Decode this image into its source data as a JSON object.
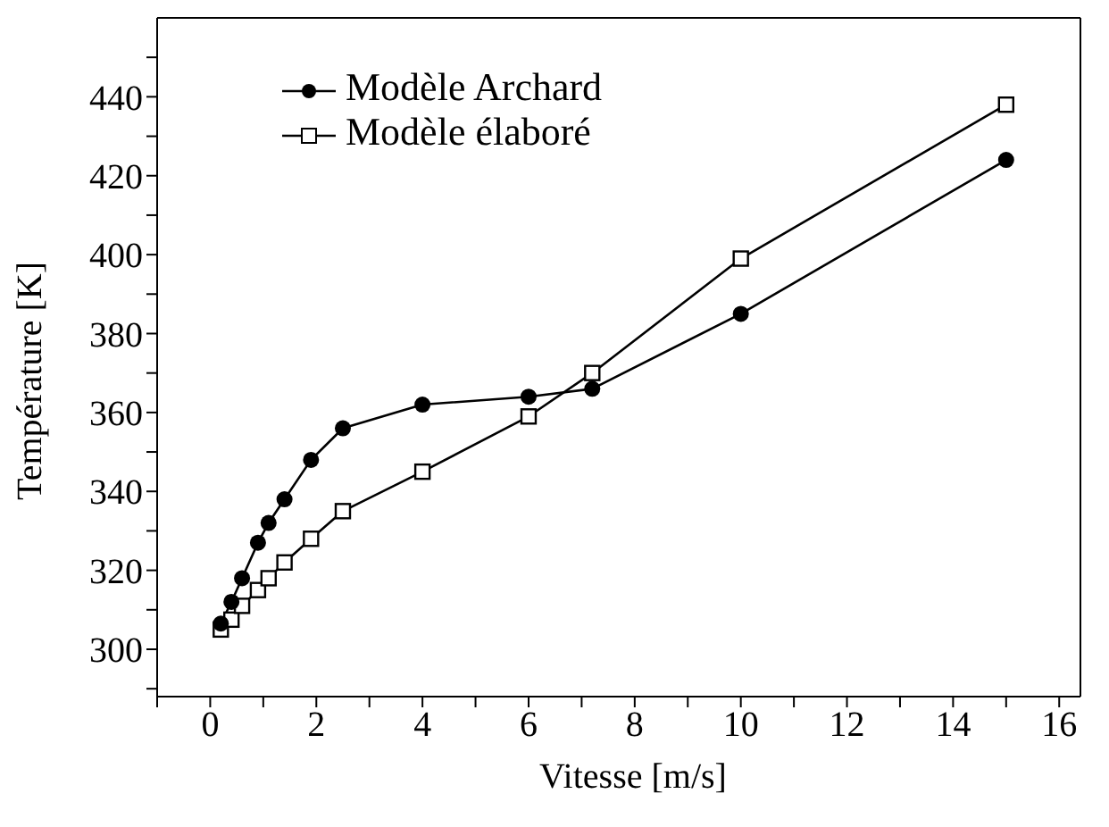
{
  "chart_data": {
    "type": "line",
    "xlabel": "Vitesse [m/s]",
    "ylabel": "Température [K]",
    "xlim": [
      -1,
      16.4
    ],
    "ylim": [
      288,
      460
    ],
    "xticks": [
      {
        "value": -1,
        "label": null
      },
      0,
      {
        "value": 1,
        "label": null
      },
      2,
      {
        "value": 3,
        "label": null
      },
      4,
      {
        "value": 5,
        "label": null
      },
      6,
      {
        "value": 7,
        "label": null
      },
      8,
      {
        "value": 9,
        "label": null
      },
      10,
      {
        "value": 11,
        "label": null
      },
      12,
      {
        "value": 13,
        "label": null
      },
      14,
      {
        "value": 15,
        "label": null
      },
      16
    ],
    "yticks": [
      {
        "value": 290,
        "label": null
      },
      300,
      {
        "value": 310,
        "label": null
      },
      320,
      {
        "value": 330,
        "label": null
      },
      340,
      {
        "value": 350,
        "label": null
      },
      360,
      {
        "value": 370,
        "label": null
      },
      380,
      {
        "value": 390,
        "label": null
      },
      400,
      {
        "value": 410,
        "label": null
      },
      420,
      {
        "value": 430,
        "label": null
      },
      440,
      {
        "value": 450,
        "label": null
      }
    ],
    "legend": "top left",
    "grid": false,
    "series": [
      {
        "name": "Modèle Archard",
        "color": "#000000",
        "marker": "circle",
        "x": [
          0.2,
          0.4,
          0.6,
          0.9,
          1.1,
          1.4,
          1.9,
          2.5,
          4,
          6,
          7.2,
          10,
          15
        ],
        "values": [
          306.5,
          312,
          318,
          327,
          332,
          338,
          348,
          356,
          362,
          364,
          366,
          385,
          424
        ]
      },
      {
        "name": "Modèle élaboré",
        "color": "#000000",
        "marker": "square",
        "x": [
          0.2,
          0.4,
          0.6,
          0.9,
          1.1,
          1.4,
          1.9,
          2.5,
          4,
          6,
          7.2,
          10,
          15
        ],
        "values": [
          305,
          307.5,
          311,
          315,
          318,
          322,
          328,
          335,
          345,
          359,
          370,
          399,
          438
        ]
      }
    ]
  }
}
